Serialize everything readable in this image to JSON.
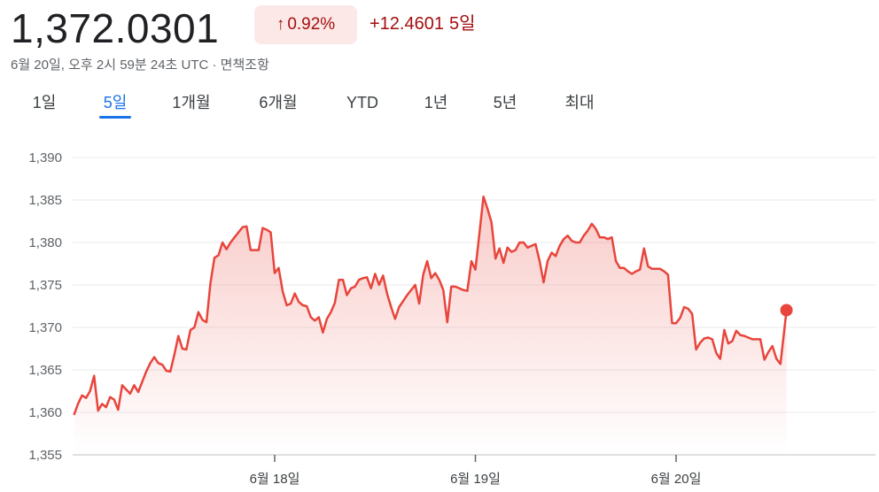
{
  "header": {
    "price": "1,372.0301",
    "change_arrow": "↑",
    "change_percent": "0.92%",
    "change_abs": "+12.4601",
    "change_period": "5일",
    "timestamp": "6월 20일, 오후 2시 59분 24초 UTC · 면책조항",
    "colors": {
      "negative_text": "#a50e0e",
      "badge_bg": "#fce8e6"
    }
  },
  "tabs": [
    {
      "label": "1일"
    },
    {
      "label": "5일",
      "active": true
    },
    {
      "label": "1개월"
    },
    {
      "label": "6개월"
    },
    {
      "label": "YTD"
    },
    {
      "label": "1년"
    },
    {
      "label": "5년"
    },
    {
      "label": "최대"
    }
  ],
  "chart_data": {
    "type": "line",
    "title": "",
    "xlabel": "",
    "ylabel": "",
    "ylim": [
      1355,
      1390
    ],
    "yticks": [
      1355,
      1360,
      1365,
      1370,
      1375,
      1380,
      1385,
      1390
    ],
    "ytick_labels": [
      "1,355",
      "1,360",
      "1,365",
      "1,370",
      "1,375",
      "1,380",
      "1,385",
      "1,390"
    ],
    "xticks": [
      {
        "x": 1,
        "label": "6월 18일"
      },
      {
        "x": 2,
        "label": "6월 19일"
      },
      {
        "x": 3,
        "label": "6월 20일"
      }
    ],
    "xlim": [
      0.0,
      4.0
    ],
    "grid": true,
    "line_color": "#e8453c",
    "series": [
      {
        "values": [
          [
            0.0,
            1359.7
          ],
          [
            0.02,
            1361.0
          ],
          [
            0.04,
            1362.0
          ],
          [
            0.06,
            1361.7
          ],
          [
            0.08,
            1362.5
          ],
          [
            0.1,
            1364.3
          ],
          [
            0.12,
            1360.2
          ],
          [
            0.14,
            1361.0
          ],
          [
            0.16,
            1360.6
          ],
          [
            0.18,
            1361.8
          ],
          [
            0.2,
            1361.5
          ],
          [
            0.22,
            1360.3
          ],
          [
            0.24,
            1363.2
          ],
          [
            0.26,
            1362.7
          ],
          [
            0.28,
            1362.2
          ],
          [
            0.3,
            1363.2
          ],
          [
            0.32,
            1362.4
          ],
          [
            0.34,
            1363.6
          ],
          [
            0.36,
            1364.8
          ],
          [
            0.38,
            1365.8
          ],
          [
            0.4,
            1366.5
          ],
          [
            0.42,
            1365.8
          ],
          [
            0.44,
            1365.6
          ],
          [
            0.46,
            1364.9
          ],
          [
            0.48,
            1364.8
          ],
          [
            0.5,
            1366.8
          ],
          [
            0.52,
            1369.0
          ],
          [
            0.54,
            1367.5
          ],
          [
            0.56,
            1367.4
          ],
          [
            0.58,
            1369.7
          ],
          [
            0.6,
            1370.0
          ],
          [
            0.62,
            1371.8
          ],
          [
            0.64,
            1370.9
          ],
          [
            0.66,
            1370.6
          ],
          [
            0.68,
            1375.2
          ],
          [
            0.7,
            1378.2
          ],
          [
            0.72,
            1378.5
          ],
          [
            0.74,
            1380.0
          ],
          [
            0.76,
            1379.2
          ],
          [
            0.78,
            1380.0
          ],
          [
            0.8,
            1380.6
          ],
          [
            0.82,
            1381.2
          ],
          [
            0.84,
            1381.8
          ],
          [
            0.86,
            1381.9
          ],
          [
            0.88,
            1379.1
          ],
          [
            0.9,
            1379.1
          ],
          [
            0.92,
            1379.1
          ],
          [
            0.94,
            1381.7
          ],
          [
            0.96,
            1381.5
          ],
          [
            0.98,
            1381.2
          ],
          [
            1.0,
            1376.4
          ],
          [
            1.02,
            1377.0
          ],
          [
            1.04,
            1374.2
          ],
          [
            1.06,
            1372.6
          ],
          [
            1.08,
            1372.8
          ],
          [
            1.1,
            1374.0
          ],
          [
            1.12,
            1373.0
          ],
          [
            1.14,
            1372.6
          ],
          [
            1.16,
            1372.5
          ],
          [
            1.18,
            1371.2
          ],
          [
            1.2,
            1370.8
          ],
          [
            1.22,
            1371.2
          ],
          [
            1.24,
            1369.4
          ],
          [
            1.26,
            1371.0
          ],
          [
            1.28,
            1371.8
          ],
          [
            1.3,
            1372.9
          ],
          [
            1.32,
            1375.6
          ],
          [
            1.34,
            1375.6
          ],
          [
            1.36,
            1373.8
          ],
          [
            1.38,
            1374.6
          ],
          [
            1.4,
            1374.8
          ],
          [
            1.42,
            1375.6
          ],
          [
            1.44,
            1375.8
          ],
          [
            1.46,
            1375.9
          ],
          [
            1.48,
            1374.6
          ],
          [
            1.5,
            1376.3
          ],
          [
            1.52,
            1375.0
          ],
          [
            1.54,
            1376.1
          ],
          [
            1.56,
            1374.0
          ],
          [
            1.58,
            1372.4
          ],
          [
            1.6,
            1371.0
          ],
          [
            1.62,
            1372.4
          ],
          [
            1.64,
            1373.1
          ],
          [
            1.66,
            1373.8
          ],
          [
            1.68,
            1374.4
          ],
          [
            1.7,
            1375.0
          ],
          [
            1.72,
            1372.8
          ],
          [
            1.74,
            1376.2
          ],
          [
            1.76,
            1377.8
          ],
          [
            1.78,
            1375.8
          ],
          [
            1.8,
            1376.4
          ],
          [
            1.82,
            1375.6
          ],
          [
            1.84,
            1374.4
          ],
          [
            1.86,
            1370.6
          ],
          [
            1.88,
            1374.8
          ],
          [
            1.9,
            1374.8
          ],
          [
            1.92,
            1374.6
          ],
          [
            1.94,
            1374.4
          ],
          [
            1.96,
            1374.3
          ],
          [
            1.98,
            1377.8
          ],
          [
            2.0,
            1376.8
          ],
          [
            2.02,
            1381.0
          ],
          [
            2.04,
            1385.4
          ],
          [
            2.06,
            1384.0
          ],
          [
            2.08,
            1382.4
          ],
          [
            2.1,
            1378.1
          ],
          [
            2.12,
            1379.3
          ],
          [
            2.14,
            1377.6
          ],
          [
            2.16,
            1379.4
          ],
          [
            2.18,
            1378.9
          ],
          [
            2.2,
            1379.1
          ],
          [
            2.22,
            1380.0
          ],
          [
            2.24,
            1380.0
          ],
          [
            2.26,
            1379.4
          ],
          [
            2.28,
            1379.6
          ],
          [
            2.3,
            1379.8
          ],
          [
            2.32,
            1377.8
          ],
          [
            2.34,
            1375.3
          ],
          [
            2.36,
            1377.8
          ],
          [
            2.38,
            1378.8
          ],
          [
            2.4,
            1378.4
          ],
          [
            2.42,
            1379.6
          ],
          [
            2.44,
            1380.4
          ],
          [
            2.46,
            1380.8
          ],
          [
            2.48,
            1380.2
          ],
          [
            2.5,
            1380.0
          ],
          [
            2.52,
            1380.0
          ],
          [
            2.54,
            1380.8
          ],
          [
            2.56,
            1381.4
          ],
          [
            2.58,
            1382.2
          ],
          [
            2.6,
            1381.6
          ],
          [
            2.62,
            1380.6
          ],
          [
            2.64,
            1380.6
          ],
          [
            2.66,
            1380.4
          ],
          [
            2.68,
            1380.6
          ],
          [
            2.7,
            1377.8
          ],
          [
            2.72,
            1377.0
          ],
          [
            2.74,
            1377.0
          ],
          [
            2.76,
            1376.6
          ],
          [
            2.78,
            1376.3
          ],
          [
            2.8,
            1376.6
          ],
          [
            2.82,
            1376.8
          ],
          [
            2.84,
            1379.3
          ],
          [
            2.86,
            1377.2
          ],
          [
            2.88,
            1376.9
          ],
          [
            2.9,
            1376.9
          ],
          [
            2.92,
            1376.9
          ],
          [
            2.94,
            1376.6
          ],
          [
            2.96,
            1376.2
          ],
          [
            2.98,
            1370.5
          ],
          [
            3.0,
            1370.5
          ],
          [
            3.02,
            1371.1
          ],
          [
            3.04,
            1372.4
          ],
          [
            3.06,
            1372.2
          ],
          [
            3.08,
            1371.6
          ],
          [
            3.1,
            1367.4
          ],
          [
            3.12,
            1368.2
          ],
          [
            3.14,
            1368.7
          ],
          [
            3.16,
            1368.8
          ],
          [
            3.18,
            1368.6
          ],
          [
            3.2,
            1367.0
          ],
          [
            3.22,
            1366.3
          ],
          [
            3.24,
            1369.7
          ],
          [
            3.26,
            1368.1
          ],
          [
            3.28,
            1368.4
          ],
          [
            3.3,
            1369.6
          ],
          [
            3.32,
            1369.1
          ],
          [
            3.34,
            1369.0
          ],
          [
            3.36,
            1368.8
          ],
          [
            3.38,
            1368.6
          ],
          [
            3.4,
            1368.6
          ],
          [
            3.42,
            1368.6
          ],
          [
            3.44,
            1366.2
          ],
          [
            3.46,
            1367.1
          ],
          [
            3.48,
            1367.8
          ],
          [
            3.5,
            1366.3
          ],
          [
            3.52,
            1365.7
          ],
          [
            3.55,
            1372.0
          ]
        ]
      }
    ],
    "last_point": {
      "x": 3.55,
      "y": 1372.0301
    }
  }
}
